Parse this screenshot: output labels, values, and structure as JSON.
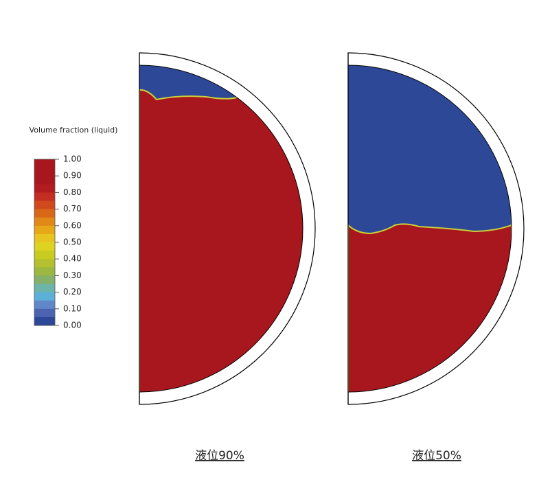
{
  "colorbar": {
    "title": "Volume fraction (liquid)",
    "ticks": [
      "1.00",
      "0.90",
      "0.80",
      "0.70",
      "0.60",
      "0.50",
      "0.40",
      "0.30",
      "0.20",
      "0.10",
      "0.00"
    ]
  },
  "panels": [
    {
      "caption": "液位90%"
    },
    {
      "caption": "液位50%"
    }
  ]
}
